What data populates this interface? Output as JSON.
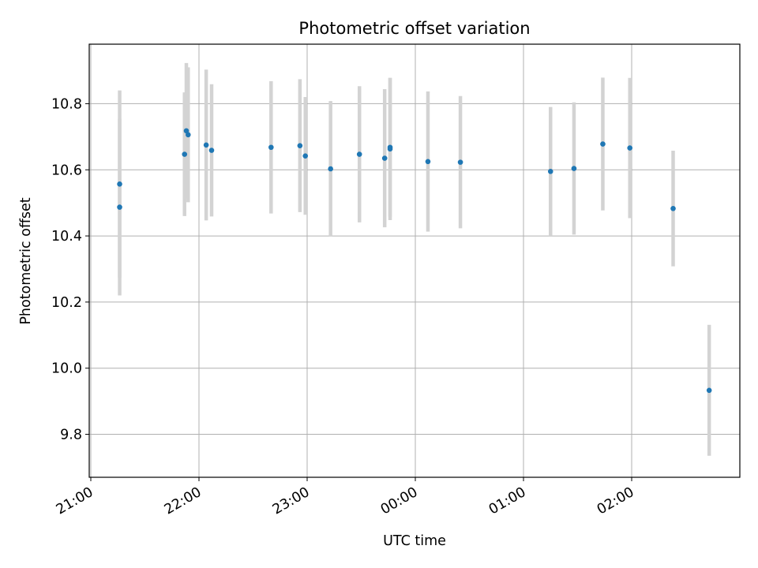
{
  "chart_data": {
    "type": "scatter",
    "title": "Photometric offset variation",
    "xlabel": "UTC time",
    "ylabel": "Photometric offset",
    "x_ticks": [
      "21:00",
      "22:00",
      "23:00",
      "00:00",
      "01:00",
      "02:00"
    ],
    "y_ticks": [
      "9.8",
      "10.0",
      "10.2",
      "10.4",
      "10.6",
      "10.8"
    ],
    "xlim": [
      "21:00",
      "03:00"
    ],
    "ylim": [
      9.67,
      10.98
    ],
    "grid": true,
    "colors": {
      "point": "#1f77b4",
      "errorbar": "#d3d3d3",
      "grid": "#b0b0b0"
    },
    "points": [
      {
        "time": "21:16",
        "y": 10.557,
        "err": 0.283
      },
      {
        "time": "21:16",
        "y": 10.487,
        "err": 0.267
      },
      {
        "time": "21:52",
        "y": 10.647,
        "err": 0.187
      },
      {
        "time": "21:53",
        "y": 10.718,
        "err": 0.205
      },
      {
        "time": "21:54",
        "y": 10.706,
        "err": 0.204
      },
      {
        "time": "22:04",
        "y": 10.675,
        "err": 0.228
      },
      {
        "time": "22:07",
        "y": 10.659,
        "err": 0.2
      },
      {
        "time": "22:40",
        "y": 10.668,
        "err": 0.2
      },
      {
        "time": "22:56",
        "y": 10.673,
        "err": 0.201
      },
      {
        "time": "22:59",
        "y": 10.642,
        "err": 0.178
      },
      {
        "time": "23:13",
        "y": 10.603,
        "err": 0.205
      },
      {
        "time": "23:29",
        "y": 10.647,
        "err": 0.206
      },
      {
        "time": "23:43",
        "y": 10.635,
        "err": 0.209
      },
      {
        "time": "23:46",
        "y": 10.668,
        "err": 0.21
      },
      {
        "time": "23:46",
        "y": 10.663,
        "err": 0.215
      },
      {
        "time": "00:07",
        "y": 10.625,
        "err": 0.212
      },
      {
        "time": "00:25",
        "y": 10.623,
        "err": 0.2
      },
      {
        "time": "01:15",
        "y": 10.595,
        "err": 0.195
      },
      {
        "time": "01:28",
        "y": 10.604,
        "err": 0.2
      },
      {
        "time": "01:44",
        "y": 10.678,
        "err": 0.201
      },
      {
        "time": "01:59",
        "y": 10.666,
        "err": 0.212
      },
      {
        "time": "02:23",
        "y": 10.483,
        "err": 0.175
      },
      {
        "time": "02:43",
        "y": 9.933,
        "err": 0.198
      }
    ]
  }
}
